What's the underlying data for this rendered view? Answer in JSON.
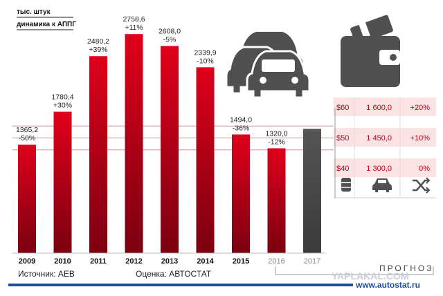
{
  "units_label": "тыс. штук",
  "dynamics_label": "динамика к АППГ",
  "source_label": "Источник: АЕВ",
  "estimate_label": "Оценка: АВТОСТАТ",
  "forecast_label": "ПРОГНОЗ",
  "website": "www.autostat.ru",
  "watermark": "YAPLAKAL.COM",
  "colors": {
    "bar_top": "#e0001b",
    "bar_bottom": "#7a0010",
    "forecast_bar": "#4a4a4a",
    "table_row": "#fbe3e3",
    "accent_text": "#c0001a",
    "icon": "#505050",
    "guide_line": "#d88a95"
  },
  "icons": {
    "cars": "cars-icon",
    "wallet": "wallet-icon",
    "oil": "oil-barrel-icon",
    "car": "car-icon",
    "shuffle": "shuffle-icon"
  },
  "forecast_table": {
    "rows": [
      {
        "oil": "$60",
        "sales": "1 600,0",
        "change": "+20%"
      },
      {
        "oil": "$50",
        "sales": "1 450,0",
        "change": "+10%"
      },
      {
        "oil": "$40",
        "sales": "1 300,0",
        "change": "0%"
      }
    ]
  },
  "chart_data": {
    "type": "bar",
    "categories": [
      "2009",
      "2010",
      "2011",
      "2012",
      "2013",
      "2014",
      "2015",
      "2016",
      "2017"
    ],
    "values": [
      1365.2,
      1780.4,
      2480.2,
      2758.6,
      2608.0,
      2339.9,
      1494.0,
      1320.0,
      1600.0
    ],
    "value_labels": [
      "1365,2",
      "1780,4",
      "2480,2",
      "2758,6",
      "2608,0",
      "2339,9",
      "1494,0",
      "1320,0",
      ""
    ],
    "change_labels": [
      "-50%",
      "+30%",
      "+39%",
      "+11%",
      "-5%",
      "-10%",
      "-36%",
      "-12%",
      ""
    ],
    "forecast_categories": [
      "2016",
      "2017"
    ],
    "ylim": [
      0,
      2900
    ],
    "title": "",
    "xlabel": "",
    "ylabel": "",
    "grid": false
  }
}
